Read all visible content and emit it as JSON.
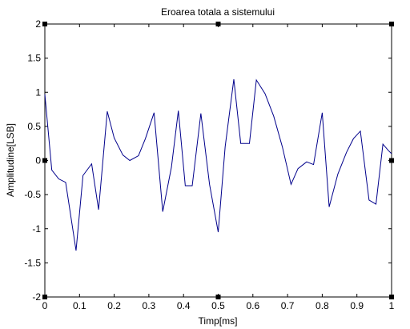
{
  "chart_data": {
    "type": "line",
    "title": "Eroarea totala a sistemului",
    "xlabel": "Timp[ms]",
    "ylabel": "Amplitudine[LSB]",
    "xlim": [
      0,
      1
    ],
    "ylim": [
      -2,
      2
    ],
    "x_ticks": [
      0,
      0.1,
      0.2,
      0.3,
      0.4,
      0.5,
      0.6,
      0.7,
      0.8,
      0.9,
      1
    ],
    "x_tick_labels": [
      "0",
      "0.1",
      "0.2",
      "0.3",
      "0.4",
      "0.5",
      "0.6",
      "0.7",
      "0.8",
      "0.9",
      "1"
    ],
    "y_ticks": [
      2,
      1.5,
      1,
      0.5,
      0,
      -0.5,
      -1,
      -1.5,
      -2
    ],
    "y_tick_labels": [
      "2",
      "1.5",
      "1",
      "0.5",
      "0",
      "-0.5",
      "-1",
      "-1.5",
      "-2"
    ],
    "grid": false,
    "line_color": "#00008b",
    "series": [
      {
        "x": [
          0,
          0.02,
          0.04,
          0.06,
          0.09,
          0.11,
          0.135,
          0.155,
          0.18,
          0.2,
          0.225,
          0.245,
          0.27,
          0.29,
          0.315,
          0.34,
          0.365,
          0.385,
          0.405,
          0.425,
          0.45,
          0.475,
          0.5,
          0.52,
          0.545,
          0.565,
          0.59,
          0.61,
          0.635,
          0.66,
          0.685,
          0.71,
          0.73,
          0.755,
          0.775,
          0.8,
          0.82,
          0.845,
          0.87,
          0.89,
          0.91,
          0.935,
          0.955,
          0.975,
          0.99,
          1.0
        ],
        "y": [
          0.97,
          -0.14,
          -0.27,
          -0.32,
          -1.32,
          -0.22,
          -0.05,
          -0.72,
          0.72,
          0.33,
          0.08,
          0.0,
          0.07,
          0.32,
          0.7,
          -0.75,
          -0.1,
          0.73,
          -0.37,
          -0.37,
          0.69,
          -0.35,
          -1.05,
          0.2,
          1.19,
          0.25,
          0.25,
          1.18,
          0.98,
          0.65,
          0.2,
          -0.35,
          -0.12,
          -0.02,
          -0.06,
          0.7,
          -0.68,
          -0.2,
          0.12,
          0.32,
          0.43,
          -0.58,
          -0.64,
          0.24,
          0.15,
          0.1
        ]
      }
    ]
  }
}
